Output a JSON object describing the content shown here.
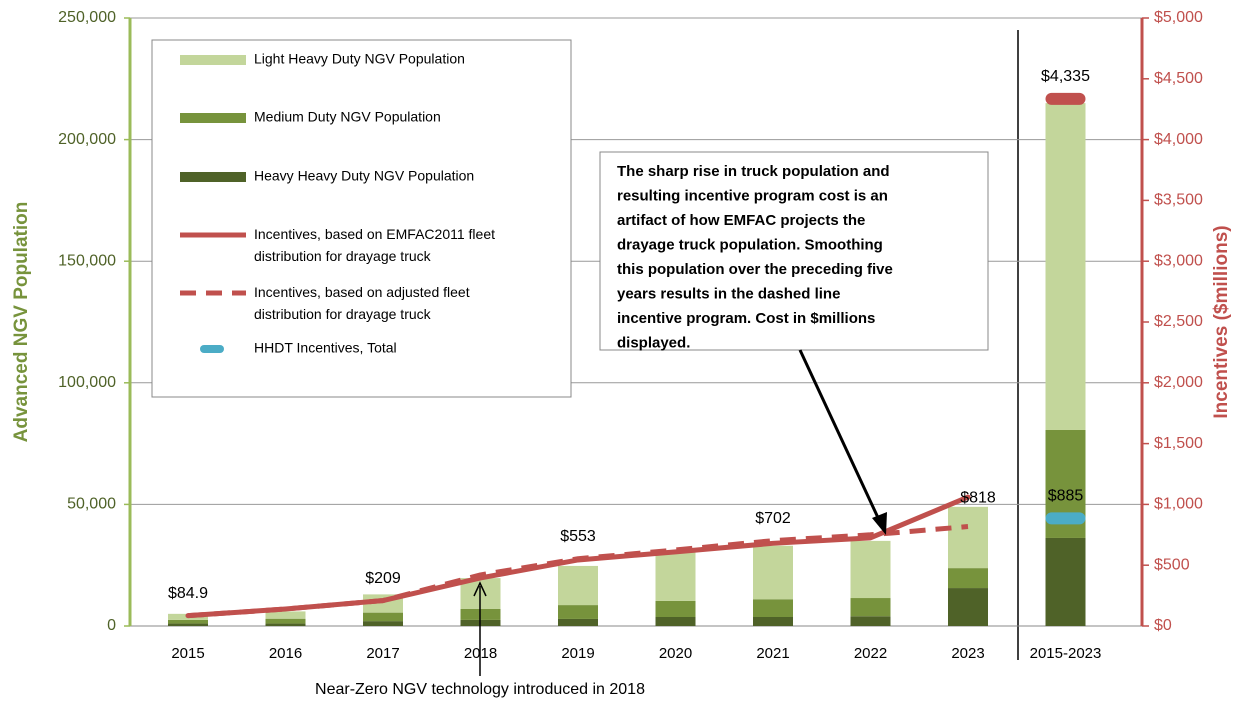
{
  "chart_data": {
    "type": "bar",
    "categories": [
      "2015",
      "2016",
      "2017",
      "2018",
      "2019",
      "2020",
      "2021",
      "2022",
      "2023",
      "2015-2023"
    ],
    "y_axis_label": "Advanced NGV Population",
    "y2_axis_label": "Incentives ($millions)",
    "ylim": [
      0,
      250000
    ],
    "yticks": [
      0,
      {
        "value": 50000,
        "label": "50,000"
      },
      {
        "value": 100000,
        "label": "100,000"
      },
      {
        "value": 150000,
        "label": "150,000"
      },
      {
        "value": 200000,
        "label": "200,000"
      },
      {
        "value": 250000,
        "label": "250,000"
      }
    ],
    "y2lim": [
      0,
      5000
    ],
    "y2ticks": [
      {
        "value": 0,
        "label": "$0"
      },
      {
        "value": 500,
        "label": "$500"
      },
      {
        "value": 1000,
        "label": "$1,000"
      },
      {
        "value": 1500,
        "label": "$1,500"
      },
      {
        "value": 2000,
        "label": "$2,000"
      },
      {
        "value": 2500,
        "label": "$2,500"
      },
      {
        "value": 3000,
        "label": "$3,000"
      },
      {
        "value": 3500,
        "label": "$3,500"
      },
      {
        "value": 4000,
        "label": "$4,000"
      },
      {
        "value": 4500,
        "label": "$4,500"
      },
      {
        "value": 5000,
        "label": "$5,000"
      }
    ],
    "grid": true,
    "legend": "top-left",
    "series": [
      {
        "name": "Heavy Heavy Duty NGV Population",
        "kind": "bar",
        "color": "#4f6228",
        "values": [
          1000,
          1000,
          2000,
          2500,
          2900,
          3700,
          3700,
          4000,
          15600,
          36200
        ]
      },
      {
        "name": "Medium Duty NGV Population",
        "kind": "bar",
        "color": "#77933c",
        "values": [
          1500,
          2000,
          3500,
          4500,
          5700,
          6600,
          7300,
          7500,
          8200,
          44400
        ]
      },
      {
        "name": "Light Heavy Duty NGV Population",
        "kind": "bar",
        "color": "#c3d69b",
        "values": [
          2500,
          3000,
          7500,
          12700,
          16100,
          20700,
          22000,
          23500,
          25200,
          134400
        ]
      },
      {
        "name": "Incentives, based on EMFAC2011 fleet distribution for drayage truck",
        "kind": "line",
        "axis": "y2",
        "color": "#c0504d",
        "values": [
          84.9,
          140,
          209,
          395,
          543,
          610,
          680,
          725,
          1060,
          null
        ]
      },
      {
        "name": "Incentives, based on adjusted fleet distribution for drayage truck",
        "kind": "dashed",
        "axis": "y2",
        "color": "#c0504d",
        "values": [
          84.9,
          140,
          209,
          420,
          553,
          625,
          702,
          750,
          818,
          null
        ],
        "value_labels": [
          "$84.9",
          null,
          "$209",
          null,
          "$553",
          null,
          "$702",
          null,
          "$818",
          null
        ]
      },
      {
        "name": "HHDT Incentives, Total",
        "kind": "marker",
        "axis": "y2",
        "color": "#4bacc6",
        "values": [
          null,
          null,
          null,
          null,
          null,
          null,
          null,
          null,
          null,
          885
        ],
        "value_labels": [
          null,
          null,
          null,
          null,
          null,
          null,
          null,
          null,
          null,
          "$885"
        ]
      },
      {
        "name": null,
        "kind": "marker",
        "axis": "y2",
        "color": "#c0504d",
        "values": [
          null,
          null,
          null,
          null,
          null,
          null,
          null,
          null,
          null,
          4335
        ],
        "value_labels": [
          null,
          null,
          null,
          null,
          null,
          null,
          null,
          null,
          null,
          "$4,335"
        ]
      }
    ],
    "legend_order": [
      2,
      1,
      0,
      3,
      4,
      5
    ],
    "annotation": {
      "lines": [
        "The sharp rise in truck population and",
        "resulting incentive program cost is an",
        "artifact of how EMFAC projects the",
        "drayage truck population. Smoothing",
        "this population over the preceding five",
        "years results in the dashed line",
        "incentive program.  Cost in $millions",
        "displayed."
      ]
    },
    "note": "Near-Zero NGV technology introduced in 2018"
  }
}
